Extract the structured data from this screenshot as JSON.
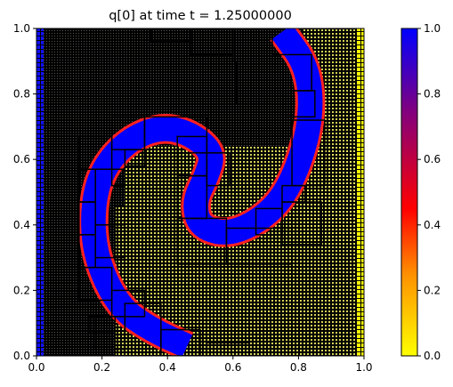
{
  "chart_data": {
    "type": "heatmap",
    "title": "q[0] at time t =     1.25000000",
    "xlabel": "",
    "ylabel": "",
    "xlim": [
      0.0,
      1.0
    ],
    "ylim": [
      0.0,
      1.0
    ],
    "x_ticks": [
      0.0,
      0.2,
      0.4,
      0.6,
      0.8,
      1.0
    ],
    "x_tick_labels": [
      "0.0",
      "0.2",
      "0.4",
      "0.6",
      "0.8",
      "1.0"
    ],
    "y_ticks": [
      0.0,
      0.2,
      0.4,
      0.6,
      0.8,
      1.0
    ],
    "y_tick_labels": [
      "0.0",
      "0.2",
      "0.4",
      "0.6",
      "0.8",
      "1.0"
    ],
    "colorbar": {
      "range": [
        0.0,
        1.0
      ],
      "ticks": [
        0.0,
        0.2,
        0.4,
        0.6,
        0.8,
        1.0
      ],
      "tick_labels": [
        "0.0",
        "0.2",
        "0.4",
        "0.6",
        "0.8",
        "1.0"
      ],
      "colormap": [
        "#ffff00",
        "#ff8000",
        "#ff0000",
        "#800080",
        "#0000ff"
      ]
    },
    "colors": {
      "q0": "#ffff00",
      "q1": "#0000ff",
      "interface": "#ff2020",
      "grid": "#000000"
    },
    "field": {
      "description_values": "q=1 inside the spiral band, q=0 elsewhere",
      "band_centerline": [
        [
          0.75,
          0.99
        ],
        [
          0.83,
          0.88
        ],
        [
          0.84,
          0.72
        ],
        [
          0.79,
          0.55
        ],
        [
          0.72,
          0.44
        ],
        [
          0.6,
          0.37
        ],
        [
          0.5,
          0.39
        ],
        [
          0.48,
          0.47
        ],
        [
          0.52,
          0.55
        ],
        [
          0.54,
          0.62
        ],
        [
          0.47,
          0.68
        ],
        [
          0.38,
          0.7
        ],
        [
          0.28,
          0.66
        ],
        [
          0.2,
          0.57
        ],
        [
          0.17,
          0.45
        ],
        [
          0.18,
          0.3
        ],
        [
          0.25,
          0.15
        ],
        [
          0.35,
          0.08
        ],
        [
          0.46,
          0.03
        ]
      ],
      "band_width": 0.075
    },
    "refinement_patches": [
      [
        0.0,
        0.0,
        0.02,
        1.0
      ],
      [
        0.98,
        0.0,
        1.0,
        1.0
      ],
      [
        0.35,
        0.96,
        0.47,
        1.0
      ],
      [
        0.47,
        0.92,
        0.6,
        1.0
      ],
      [
        0.6,
        0.9,
        0.72,
        1.0
      ],
      [
        0.61,
        0.77,
        0.72,
        0.9
      ],
      [
        0.72,
        0.81,
        0.84,
        0.92
      ],
      [
        0.76,
        0.73,
        0.85,
        0.81
      ],
      [
        0.78,
        0.52,
        0.88,
        0.72
      ],
      [
        0.75,
        0.47,
        0.82,
        0.52
      ],
      [
        0.75,
        0.34,
        0.87,
        0.47
      ],
      [
        0.67,
        0.37,
        0.75,
        0.45
      ],
      [
        0.58,
        0.28,
        0.78,
        0.39
      ],
      [
        0.43,
        0.28,
        0.58,
        0.42
      ],
      [
        0.43,
        0.42,
        0.52,
        0.55
      ],
      [
        0.43,
        0.55,
        0.52,
        0.67
      ],
      [
        0.52,
        0.52,
        0.59,
        0.62
      ],
      [
        0.33,
        0.62,
        0.52,
        0.73
      ],
      [
        0.23,
        0.63,
        0.33,
        0.73
      ],
      [
        0.13,
        0.57,
        0.23,
        0.67
      ],
      [
        0.13,
        0.47,
        0.18,
        0.57
      ],
      [
        0.23,
        0.52,
        0.27,
        0.57
      ],
      [
        0.27,
        0.58,
        0.33,
        0.63
      ],
      [
        0.13,
        0.37,
        0.18,
        0.47
      ],
      [
        0.13,
        0.27,
        0.18,
        0.37
      ],
      [
        0.18,
        0.3,
        0.27,
        0.4
      ],
      [
        0.13,
        0.17,
        0.23,
        0.27
      ],
      [
        0.23,
        0.12,
        0.33,
        0.2
      ],
      [
        0.16,
        0.07,
        0.24,
        0.12
      ],
      [
        0.18,
        0.02,
        0.27,
        0.12
      ],
      [
        0.27,
        0.0,
        0.38,
        0.16
      ],
      [
        0.38,
        0.0,
        0.5,
        0.08
      ],
      [
        0.52,
        0.0,
        0.65,
        0.04
      ]
    ]
  }
}
